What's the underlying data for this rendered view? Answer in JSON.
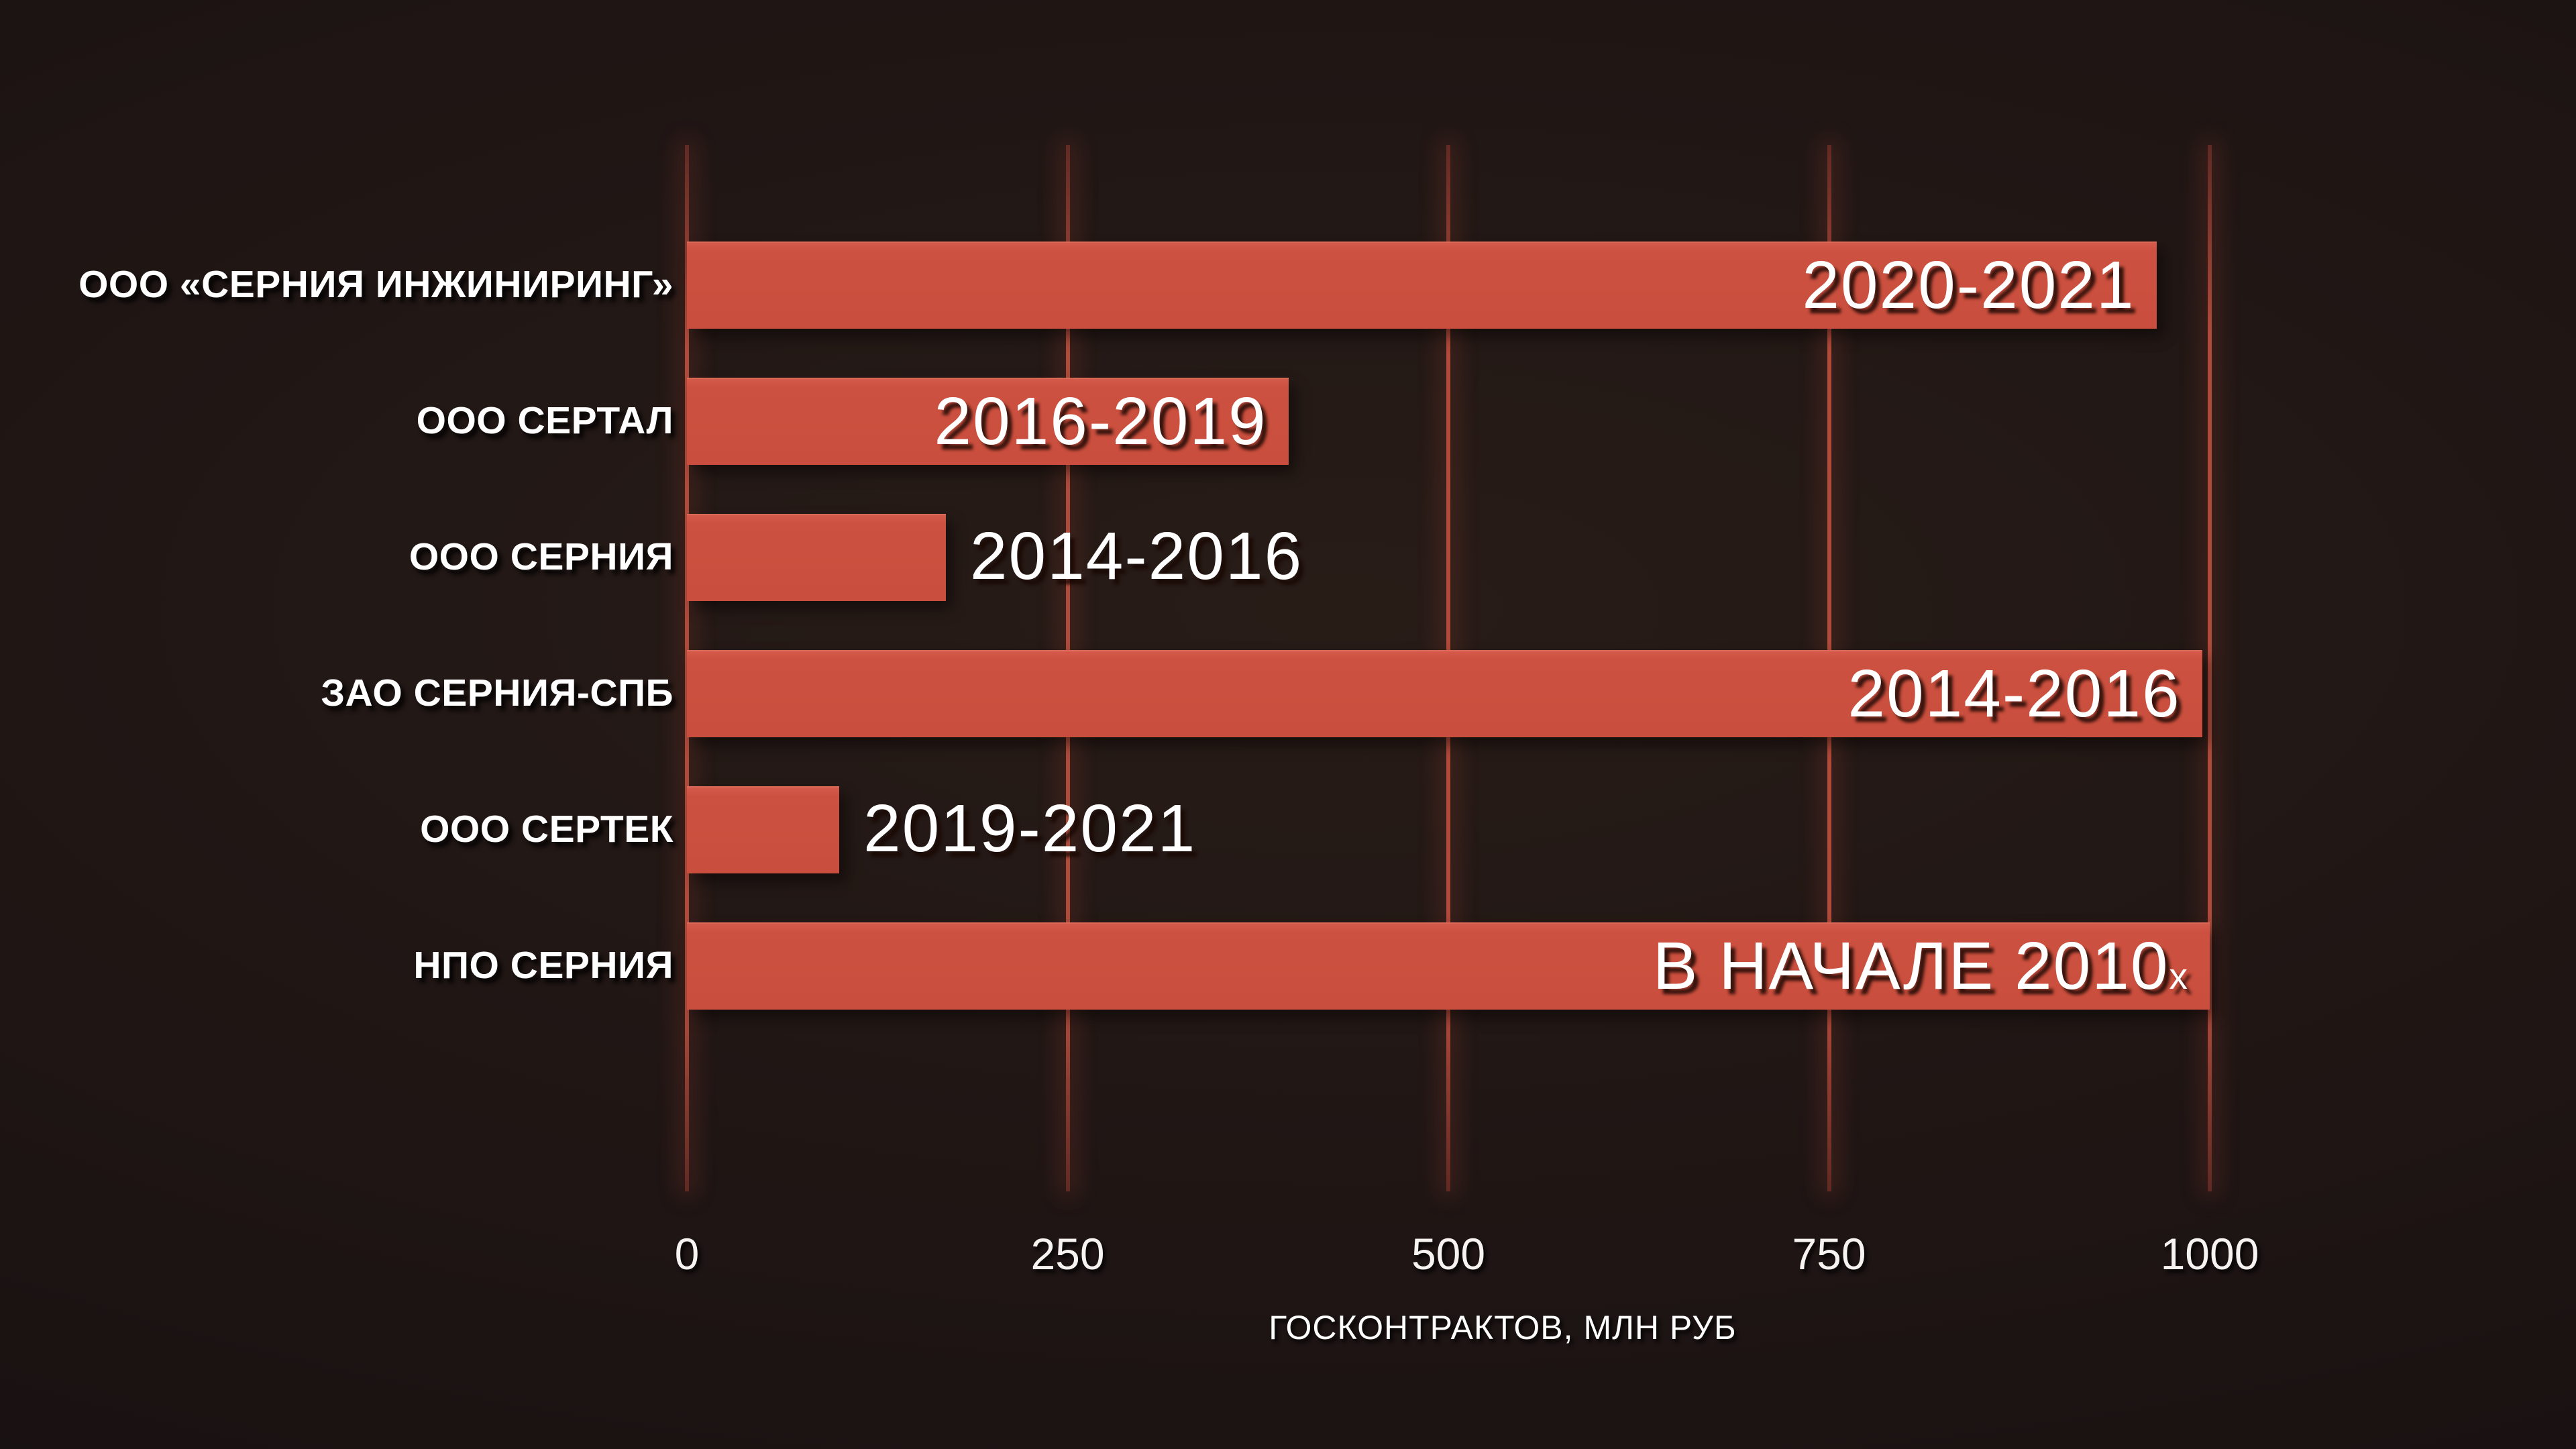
{
  "chart_data": {
    "type": "bar",
    "orientation": "horizontal",
    "title": "",
    "xlabel": "ГОСКОНТРАКТОВ, МЛН РУБ",
    "ylabel": "",
    "xlim": [
      0,
      1000
    ],
    "xticks": [
      0,
      250,
      500,
      750,
      1000
    ],
    "xtick_labels": [
      "0",
      "250",
      "500",
      "750",
      "1000"
    ],
    "grid": "vertical-gridlines-on",
    "legend": "none",
    "categories": [
      "ООО «СЕРНИЯ ИНЖИНИРИНГ»",
      "ООО СЕРТАЛ",
      "ООО СЕРНИЯ",
      "ЗАО СЕРНИЯ-СПБ",
      "ООО СЕРТЕК",
      "НПО СЕРНИЯ"
    ],
    "values": [
      965,
      395,
      170,
      995,
      100,
      1000
    ],
    "bar_labels": [
      "2020-2021",
      "2016-2019",
      "2014-2016",
      "2014-2016",
      "2019-2021",
      "В НАЧАЛЕ 2010"
    ],
    "bar_label_suffixes": [
      "",
      "",
      "",
      "",
      "",
      "х"
    ],
    "bar_label_placement": [
      "inside",
      "inside",
      "outside",
      "inside",
      "outside",
      "inside"
    ],
    "colors": {
      "bar": "#cd5140",
      "gridline": "#b04a3a",
      "gridline_glow": "rgba(205,81,64,0.26)",
      "text": "#ffffff",
      "background_center": "#281c17",
      "background_edge": "#140f0f"
    }
  }
}
